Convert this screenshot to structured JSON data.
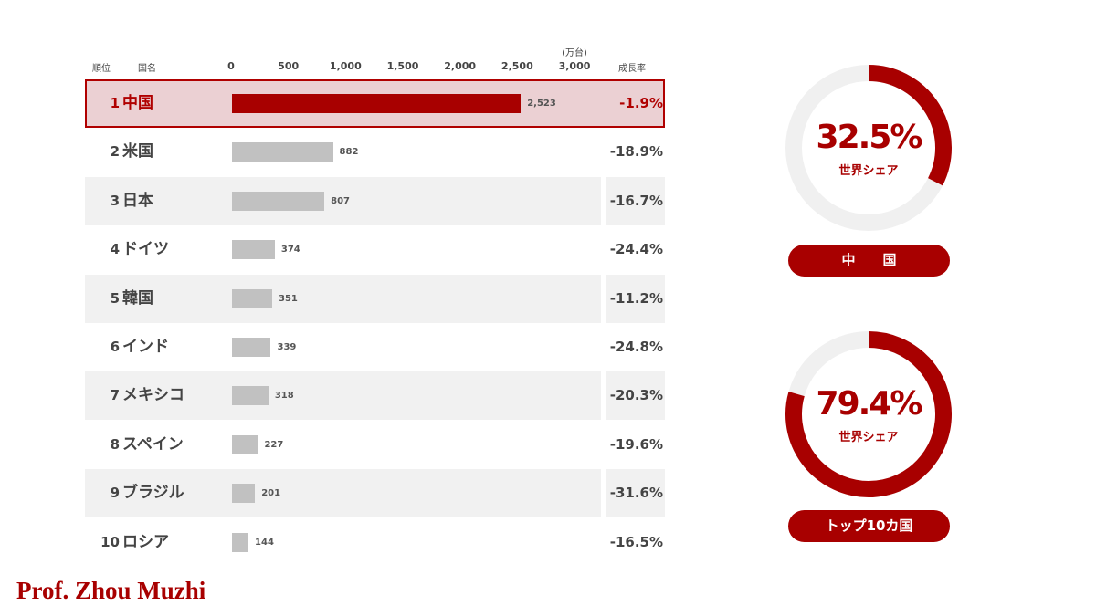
{
  "headers": {
    "rank": "順位",
    "country": "国名",
    "unit": "(万台)",
    "growth": "成長率"
  },
  "chart_data": {
    "type": "bar",
    "orientation": "horizontal",
    "unit": "(万台)",
    "xlim": [
      0,
      3000
    ],
    "ticks": [
      "0",
      "500",
      "1,000",
      "1,500",
      "2,000",
      "2,500",
      "3,000"
    ],
    "tick_values": [
      0,
      500,
      1000,
      1500,
      2000,
      2500,
      3000
    ],
    "categories": [
      "中国",
      "米国",
      "日本",
      "ドイツ",
      "韓国",
      "インド",
      "メキシコ",
      "スペイン",
      "ブラジル",
      "ロシア"
    ],
    "ranks": [
      "1",
      "2",
      "3",
      "4",
      "5",
      "6",
      "7",
      "8",
      "9",
      "10"
    ],
    "values": [
      2523,
      882,
      807,
      374,
      351,
      339,
      318,
      227,
      201,
      144
    ],
    "value_labels": [
      "2,523",
      "882",
      "807",
      "374",
      "351",
      "339",
      "318",
      "227",
      "201",
      "144"
    ],
    "growth": [
      "-1.9%",
      "-18.9%",
      "-16.7%",
      "-24.4%",
      "-11.2%",
      "-24.8%",
      "-20.3%",
      "-19.6%",
      "-31.6%",
      "-16.5%"
    ],
    "highlight_index": 0
  },
  "donuts": [
    {
      "value": "32.5%",
      "fraction": 0.325,
      "sublabel": "世界シェア",
      "pill": "中　　国"
    },
    {
      "value": "79.4%",
      "fraction": 0.794,
      "sublabel": "世界シェア",
      "pill": "トップ10カ国"
    }
  ],
  "colors": {
    "accent": "#a80000",
    "bar": "#c1c1c1",
    "highlight_bg": "#ebd0d3",
    "row_shade": "#f1f1f1",
    "donut_track": "#f0f0f0"
  },
  "signature": "Prof. Zhou Muzhi"
}
